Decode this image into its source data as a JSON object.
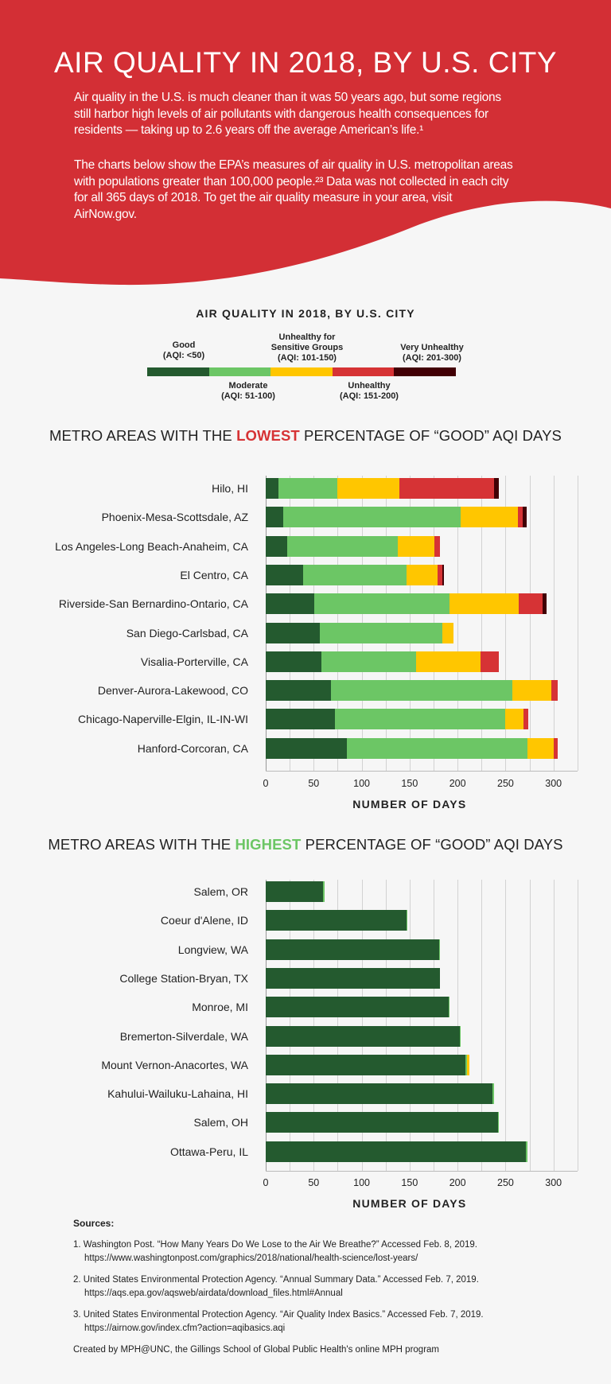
{
  "header": {
    "title": "AIR QUALITY IN 2018, BY U.S. CITY",
    "paragraph1": [
      "Air quality in the U.S. is much cleaner than it was 50 years ago, but some regions",
      "still harbor high levels of air pollutants with dangerous health consequences for",
      "residents — taking up to 2.6 years off the average American’s life.¹"
    ],
    "paragraph2": [
      "The charts below show the EPA’s measures of air quality in U.S. metropolitan areas",
      "with populations greater than 100,000 people.²³ Data was not collected in each city",
      "for all 365 days of 2018. To get the air quality measure in your area, visit",
      "AirNow.gov."
    ],
    "background_color": "#d32f35"
  },
  "legend": {
    "title": "AIR QUALITY IN 2018, BY U.S. CITY",
    "items": [
      {
        "name": "Good",
        "range": "(AQI: <50)",
        "color": "#245a2f"
      },
      {
        "name": "Moderate",
        "range": "(AQI: 51-100)",
        "color": "#6cc665"
      },
      {
        "name": "Unhealthy for Sensitive Groups",
        "name_line1": "Unhealthy for",
        "name_line2": "Sensitive Groups",
        "range": "(AQI: 101-150)",
        "color": "#ffc600"
      },
      {
        "name": "Unhealthy",
        "range": "(AQI: 151-200)",
        "color": "#d63335"
      },
      {
        "name": "Very Unhealthy",
        "range": "(AQI: 201-300)",
        "color": "#420005"
      }
    ]
  },
  "chart_data": [
    {
      "type": "bar",
      "orientation": "horizontal",
      "stacked": true,
      "title_parts": [
        "METRO AREAS WITH THE ",
        "LOWEST",
        " PERCENTAGE OF “GOOD” AQI DAYS"
      ],
      "title_highlight_color": "#d63335",
      "xlabel": "NUMBER OF DAYS",
      "xlim": [
        0,
        325
      ],
      "xticks": [
        0,
        50,
        100,
        150,
        200,
        250,
        300
      ],
      "grid": "vertical every 25",
      "categories": [
        "Hilo, HI",
        "Phoenix-Mesa-Scottsdale, AZ",
        "Los Angeles-Long Beach-Anaheim, CA",
        "El Centro, CA",
        "Riverside-San Bernardino-Ontario, CA",
        "San Diego-Carlsbad, CA",
        "Visalia-Porterville, CA",
        "Denver-Aurora-Lakewood, CO",
        "Chicago-Naperville-Elgin, IL-IN-WI",
        "Hanford-Corcoran, CA"
      ],
      "series": [
        {
          "name": "Good",
          "color": "#245a2f",
          "values": [
            13,
            18,
            22,
            39,
            51,
            56,
            58,
            68,
            72,
            85
          ]
        },
        {
          "name": "Moderate",
          "color": "#6cc665",
          "values": [
            62,
            185,
            116,
            108,
            141,
            128,
            99,
            189,
            178,
            188
          ]
        },
        {
          "name": "Unhealthy for Sensitive Groups",
          "color": "#ffc600",
          "values": [
            64,
            60,
            38,
            32,
            72,
            12,
            67,
            41,
            19,
            27
          ]
        },
        {
          "name": "Unhealthy",
          "color": "#d63335",
          "values": [
            99,
            5,
            6,
            5,
            25,
            0,
            19,
            6,
            5,
            4
          ]
        },
        {
          "name": "Very Unhealthy",
          "color": "#420005",
          "values": [
            5,
            4,
            0,
            2,
            4,
            0,
            0,
            0,
            0,
            0
          ]
        }
      ]
    },
    {
      "type": "bar",
      "orientation": "horizontal",
      "stacked": true,
      "title_parts": [
        "METRO AREAS WITH THE ",
        "HIGHEST",
        " PERCENTAGE OF “GOOD” AQI DAYS"
      ],
      "title_highlight_color": "#6cc665",
      "xlabel": "NUMBER OF DAYS",
      "xlim": [
        0,
        325
      ],
      "xticks": [
        0,
        50,
        100,
        150,
        200,
        250,
        300
      ],
      "grid": "vertical every 25",
      "categories": [
        "Salem, OR",
        "Coeur d'Alene, ID",
        "Longview, WA",
        "College Station-Bryan, TX",
        "Monroe, MI",
        "Bremerton-Silverdale, WA",
        "Mount Vernon-Anacortes, WA",
        "Kahului-Wailuku-Lahaina, HI",
        "Salem, OH",
        "Ottawa-Peru, IL"
      ],
      "series": [
        {
          "name": "Good",
          "color": "#245a2f",
          "values": [
            60,
            147,
            181,
            182,
            191,
            202,
            208,
            236,
            242,
            271
          ]
        },
        {
          "name": "Moderate",
          "color": "#6cc665",
          "values": [
            1,
            1,
            1,
            0,
            1,
            1,
            2,
            2,
            1,
            2
          ]
        },
        {
          "name": "Unhealthy for Sensitive Groups",
          "color": "#ffc600",
          "values": [
            0,
            0,
            0,
            0,
            0,
            0,
            2,
            0,
            0,
            0
          ]
        },
        {
          "name": "Unhealthy",
          "color": "#d63335",
          "values": [
            0,
            0,
            0,
            0,
            0,
            0,
            0,
            0,
            0,
            0
          ]
        },
        {
          "name": "Very Unhealthy",
          "color": "#420005",
          "values": [
            0,
            0,
            0,
            0,
            0,
            0,
            0,
            0,
            0,
            0
          ]
        }
      ]
    }
  ],
  "sources": {
    "title": "Sources:",
    "items": [
      {
        "text": "1. Washington Post. “How Many Years Do We Lose to the Air We Breathe?” Accessed Feb. 8, 2019.",
        "url": "https://www.washingtonpost.com/graphics/2018/national/health-science/lost-years/"
      },
      {
        "text": "2. United States Environmental Protection Agency. “Annual Summary Data.” Accessed Feb. 7, 2019.",
        "url": "https://aqs.epa.gov/aqsweb/airdata/download_files.html#Annual"
      },
      {
        "text": "3. United States Environmental Protection Agency. “Air Quality Index Basics.” Accessed Feb. 7, 2019.",
        "url": "https://airnow.gov/index.cfm?action=aqibasics.aqi"
      }
    ],
    "credit": "Created by MPH@UNC, the Gillings School of Global Public Health's online MPH program"
  }
}
